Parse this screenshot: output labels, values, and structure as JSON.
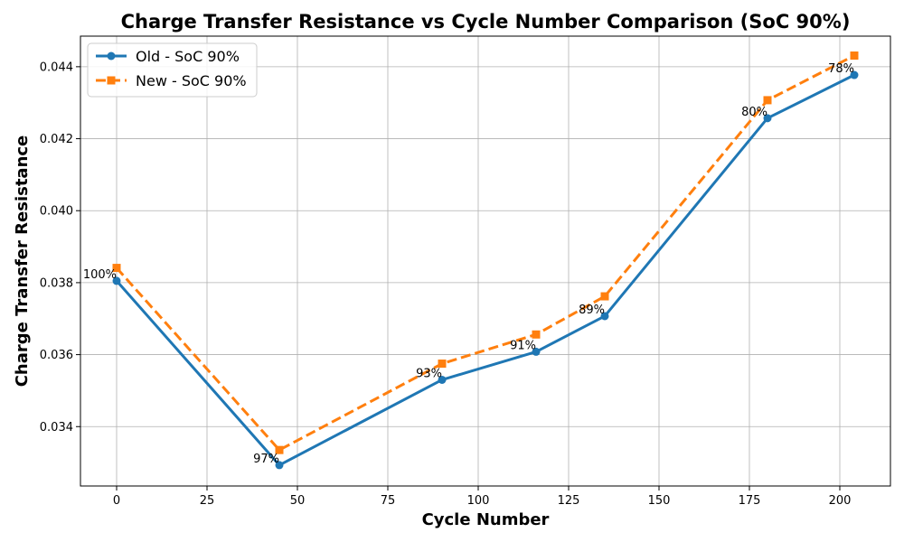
{
  "chart_data": {
    "type": "line",
    "title": "Charge Transfer Resistance vs Cycle Number Comparison (SoC 90%)",
    "xlabel": "Cycle Number",
    "ylabel": "Charge Transfer Resistance",
    "xlim": [
      -10,
      214
    ],
    "ylim": [
      0.03235,
      0.04485
    ],
    "xticks": [
      0,
      25,
      50,
      75,
      100,
      125,
      150,
      175,
      200
    ],
    "yticks": [
      0.034,
      0.036,
      0.038,
      0.04,
      0.042,
      0.044
    ],
    "ytick_labels": [
      "0.034",
      "0.036",
      "0.038",
      "0.040",
      "0.042",
      "0.044"
    ],
    "grid": true,
    "legend_position": "top-left",
    "series": [
      {
        "name": "Old - SoC 90%",
        "color": "#1f77b4",
        "line_style": "solid",
        "marker": "circle",
        "x": [
          0,
          45,
          90,
          116,
          135,
          180,
          204
        ],
        "y": [
          0.03805,
          0.03293,
          0.0353,
          0.03608,
          0.03707,
          0.04257,
          0.04377
        ]
      },
      {
        "name": "New - SoC 90%",
        "color": "#ff7f0e",
        "line_style": "dashed",
        "marker": "square",
        "x": [
          0,
          45,
          90,
          116,
          135,
          180,
          204
        ],
        "y": [
          0.03841,
          0.03335,
          0.03575,
          0.03656,
          0.03762,
          0.04307,
          0.04431
        ]
      }
    ],
    "annotations": [
      {
        "x": 0,
        "y": 0.03805,
        "text": "100%"
      },
      {
        "x": 45,
        "y": 0.03293,
        "text": "97%"
      },
      {
        "x": 90,
        "y": 0.0353,
        "text": "93%"
      },
      {
        "x": 116,
        "y": 0.03608,
        "text": "91%"
      },
      {
        "x": 135,
        "y": 0.03707,
        "text": "89%"
      },
      {
        "x": 180,
        "y": 0.04257,
        "text": "80%"
      },
      {
        "x": 204,
        "y": 0.04377,
        "text": "78%"
      }
    ]
  }
}
